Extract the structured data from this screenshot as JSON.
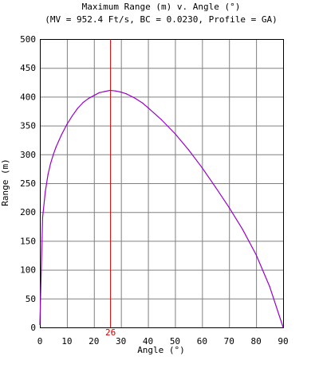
{
  "chart_data": {
    "type": "line",
    "title": "Maximum Range (m) v. Angle (°)",
    "subtitle": "(MV = 952.4 Ft/s, BC = 0.0230, Profile = GA)",
    "xlabel": "Angle (°)",
    "ylabel": "Range (m)",
    "xlim": [
      0,
      90
    ],
    "ylim": [
      0,
      500
    ],
    "xticks": [
      0,
      10,
      20,
      30,
      40,
      50,
      60,
      70,
      80,
      90
    ],
    "yticks": [
      0,
      50,
      100,
      150,
      200,
      250,
      300,
      350,
      400,
      450,
      500
    ],
    "grid": true,
    "series": [
      {
        "color": "#9900cc",
        "x": [
          0,
          1,
          2,
          3,
          4,
          5,
          6,
          8,
          10,
          12,
          14,
          16,
          18,
          20,
          22,
          24,
          26,
          28,
          30,
          32,
          35,
          38,
          40,
          45,
          50,
          55,
          60,
          65,
          70,
          75,
          80,
          85,
          90
        ],
        "y": [
          5,
          190,
          235,
          265,
          285,
          300,
          313,
          334,
          352,
          367,
          380,
          390,
          397,
          402,
          407,
          409,
          411,
          410,
          408,
          405,
          398,
          389,
          381,
          360,
          336,
          308,
          277,
          243,
          208,
          170,
          126,
          71,
          0
        ]
      }
    ],
    "annotations": [
      {
        "type": "vline",
        "x": 26,
        "label": "26",
        "color": "#cc0000"
      }
    ]
  }
}
